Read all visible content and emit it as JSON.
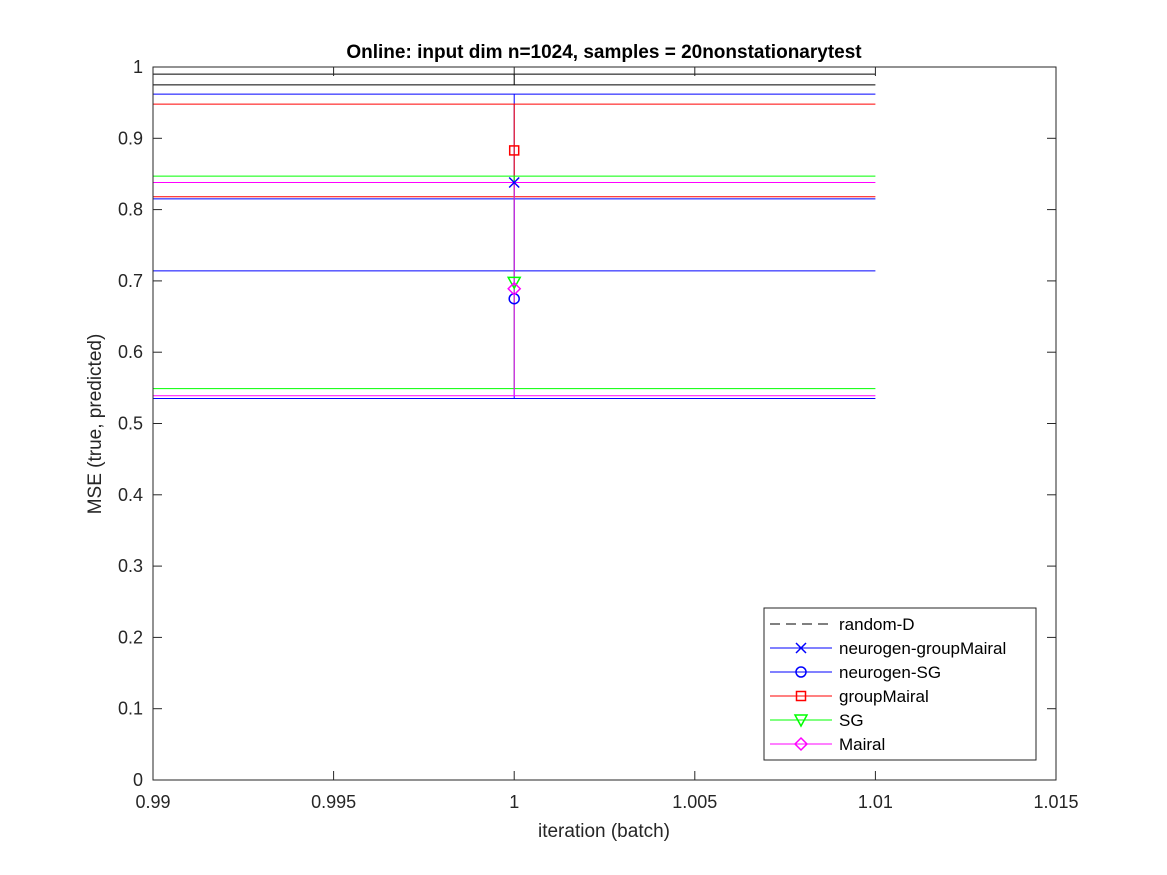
{
  "chart_data": {
    "type": "line",
    "title": "Online:  input dim n=1024, samples = 20nonstationarytest",
    "xlabel": "iteration (batch)",
    "ylabel": "MSE (true, predicted)",
    "xlim": [
      0.99,
      1.015
    ],
    "ylim": [
      0,
      1
    ],
    "x_ticks": [
      0.99,
      0.995,
      1,
      1.005,
      1.01,
      1.015
    ],
    "x_tick_labels": [
      "0.99",
      "0.995",
      "1",
      "1.005",
      "1.01",
      "1.015"
    ],
    "y_ticks": [
      0,
      0.1,
      0.2,
      0.3,
      0.4,
      0.5,
      0.6,
      0.7,
      0.8,
      0.9,
      1
    ],
    "y_tick_labels": [
      "0",
      "0.1",
      "0.2",
      "0.3",
      "0.4",
      "0.5",
      "0.6",
      "0.7",
      "0.8",
      "0.9",
      "1"
    ],
    "grid": false,
    "legend_position": "bottom-right",
    "series": [
      {
        "name": "random-D",
        "color": "#000000",
        "marker": "none",
        "dash": true,
        "x": 1,
        "y": 0.983,
        "err_low": 0.975,
        "err_high": 0.99
      },
      {
        "name": "neurogen-groupMairal",
        "color": "#0000ff",
        "marker": "x",
        "x": 1,
        "y": 0.838,
        "err_low": 0.714,
        "err_high": 0.962
      },
      {
        "name": "neurogen-SG",
        "color": "#0000ff",
        "marker": "circle",
        "x": 1,
        "y": 0.675,
        "err_low": 0.535,
        "err_high": 0.815
      },
      {
        "name": "groupMairal",
        "color": "#ff0000",
        "marker": "square",
        "x": 1,
        "y": 0.883,
        "err_low": 0.818,
        "err_high": 0.948
      },
      {
        "name": "SG",
        "color": "#00ff00",
        "marker": "triangle-down",
        "x": 1,
        "y": 0.698,
        "err_low": 0.549,
        "err_high": 0.847
      },
      {
        "name": "Mairal",
        "color": "#ff00ff",
        "marker": "diamond",
        "x": 1,
        "y": 0.689,
        "err_low": 0.539,
        "err_high": 0.838
      }
    ],
    "errorbar_cap_x": [
      0.99,
      1.01
    ]
  }
}
